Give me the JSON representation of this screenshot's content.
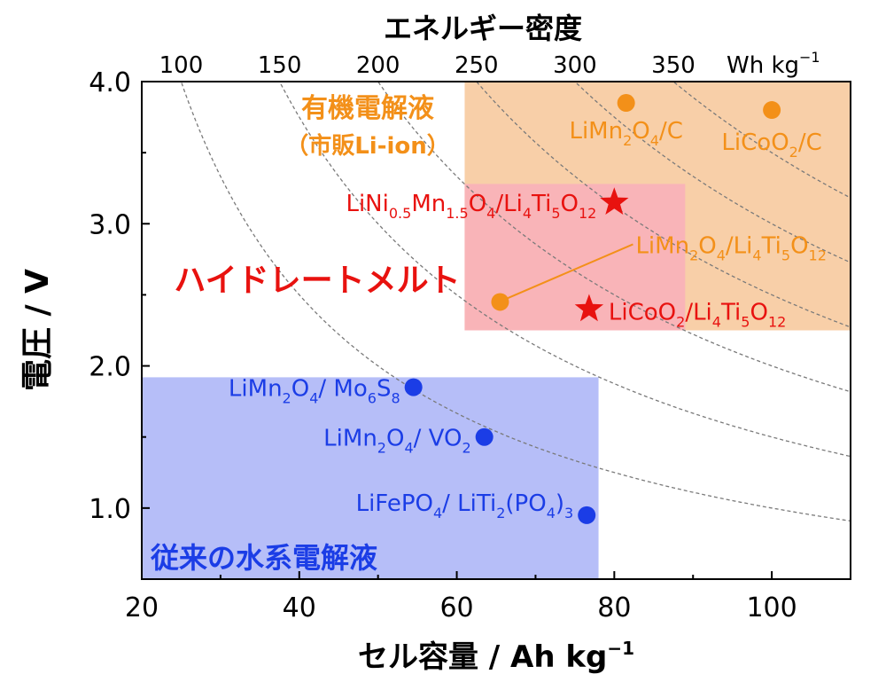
{
  "chart_data": {
    "type": "scatter",
    "xlabel": "セル容量 / Ah kg",
    "xlabel_sup": "−1",
    "ylabel": "電圧 / V",
    "xlim": [
      20,
      110
    ],
    "ylim": [
      0.5,
      4.0
    ],
    "x_ticks": [
      20,
      40,
      60,
      80,
      100
    ],
    "x_tick_labels": [
      "20",
      "40",
      "60",
      "80",
      "100"
    ],
    "y_ticks": [
      1.0,
      2.0,
      3.0,
      4.0
    ],
    "y_tick_labels": [
      "1.0",
      "2.0",
      "3.0",
      "4.0"
    ],
    "top_axis": {
      "label": "エネルギー密度",
      "unit_label": "Wh kg",
      "unit_sup": "−1",
      "ticks": [
        100,
        150,
        200,
        250,
        300,
        350
      ],
      "tick_labels": [
        "100",
        "150",
        "200",
        "250",
        "300",
        "350"
      ]
    },
    "energy_contours_wh_per_kg": [
      100,
      150,
      200,
      250,
      300,
      350
    ],
    "regions": [
      {
        "id": "organic",
        "label_lines": [
          "有機電解液",
          "（市販Li-ion）"
        ],
        "x": [
          61,
          110
        ],
        "y": [
          2.25,
          4.0
        ],
        "color": "#F8CFA8",
        "text_color": "#F39019"
      },
      {
        "id": "hydrate",
        "label_lines": [
          "ハイドレートメルト"
        ],
        "x": [
          61,
          89
        ],
        "y": [
          2.25,
          3.28
        ],
        "color": "#F9B4B8",
        "text_color": "#E8120F"
      },
      {
        "id": "aqueous",
        "label_lines": [
          "従来の水系電解液"
        ],
        "x": [
          20,
          78
        ],
        "y": [
          0.5,
          1.92
        ],
        "color": "#B6BEF8",
        "text_color": "#1B3DE6"
      }
    ],
    "series": [
      {
        "name": "有機電解液",
        "marker": "circle",
        "color": "#F39019",
        "points": [
          {
            "x": 81.5,
            "y": 3.85,
            "label": [
              [
                "LiMn",
                "n"
              ],
              [
                "2",
                "s"
              ],
              [
                "O",
                "n"
              ],
              [
                "4",
                "s"
              ],
              [
                "/C",
                "n"
              ]
            ]
          },
          {
            "x": 100.0,
            "y": 3.8,
            "label": [
              [
                "LiCoO",
                "n"
              ],
              [
                "2",
                "s"
              ],
              [
                "/C",
                "n"
              ]
            ]
          },
          {
            "x": 65.5,
            "y": 2.45,
            "label": [
              [
                "LiMn",
                "n"
              ],
              [
                "2",
                "s"
              ],
              [
                "O",
                "n"
              ],
              [
                "4",
                "s"
              ],
              [
                "/Li",
                "n"
              ],
              [
                "4",
                "s"
              ],
              [
                "Ti",
                "n"
              ],
              [
                "5",
                "s"
              ],
              [
                "O",
                "n"
              ],
              [
                "12",
                "s"
              ]
            ]
          }
        ]
      },
      {
        "name": "ハイドレートメルト",
        "marker": "star",
        "color": "#E8120F",
        "points": [
          {
            "x": 80.0,
            "y": 3.15,
            "label": [
              [
                "LiNi",
                "n"
              ],
              [
                "0.5",
                "s"
              ],
              [
                "Mn",
                "n"
              ],
              [
                "1.5",
                "s"
              ],
              [
                "O",
                "n"
              ],
              [
                "4",
                "s"
              ],
              [
                "/Li",
                "n"
              ],
              [
                "4",
                "s"
              ],
              [
                "Ti",
                "n"
              ],
              [
                "5",
                "s"
              ],
              [
                "O",
                "n"
              ],
              [
                "12",
                "s"
              ]
            ]
          },
          {
            "x": 76.8,
            "y": 2.4,
            "label": [
              [
                "LiCoO",
                "n"
              ],
              [
                "2",
                "s"
              ],
              [
                "/Li",
                "n"
              ],
              [
                "4",
                "s"
              ],
              [
                "Ti",
                "n"
              ],
              [
                "5",
                "s"
              ],
              [
                "O",
                "n"
              ],
              [
                "12",
                "s"
              ]
            ]
          }
        ]
      },
      {
        "name": "従来の水系電解液",
        "marker": "circle",
        "color": "#1B3DE6",
        "points": [
          {
            "x": 54.5,
            "y": 1.85,
            "label": [
              [
                "LiMn",
                "n"
              ],
              [
                "2",
                "s"
              ],
              [
                "O",
                "n"
              ],
              [
                "4",
                "s"
              ],
              [
                "/ Mo",
                "n"
              ],
              [
                "6",
                "s"
              ],
              [
                "S",
                "n"
              ],
              [
                "8",
                "s"
              ]
            ]
          },
          {
            "x": 63.5,
            "y": 1.5,
            "label": [
              [
                "LiMn",
                "n"
              ],
              [
                "2",
                "s"
              ],
              [
                "O",
                "n"
              ],
              [
                "4",
                "s"
              ],
              [
                "/ VO",
                "n"
              ],
              [
                "2",
                "s"
              ]
            ]
          },
          {
            "x": 76.5,
            "y": 0.95,
            "label": [
              [
                "LiFePO",
                "n"
              ],
              [
                "4",
                "s"
              ],
              [
                "/ LiTi",
                "n"
              ],
              [
                "2",
                "s"
              ],
              [
                "(PO",
                "n"
              ],
              [
                "4",
                "s"
              ],
              [
                ")",
                "n"
              ],
              [
                "3",
                "s"
              ]
            ]
          }
        ]
      }
    ]
  }
}
